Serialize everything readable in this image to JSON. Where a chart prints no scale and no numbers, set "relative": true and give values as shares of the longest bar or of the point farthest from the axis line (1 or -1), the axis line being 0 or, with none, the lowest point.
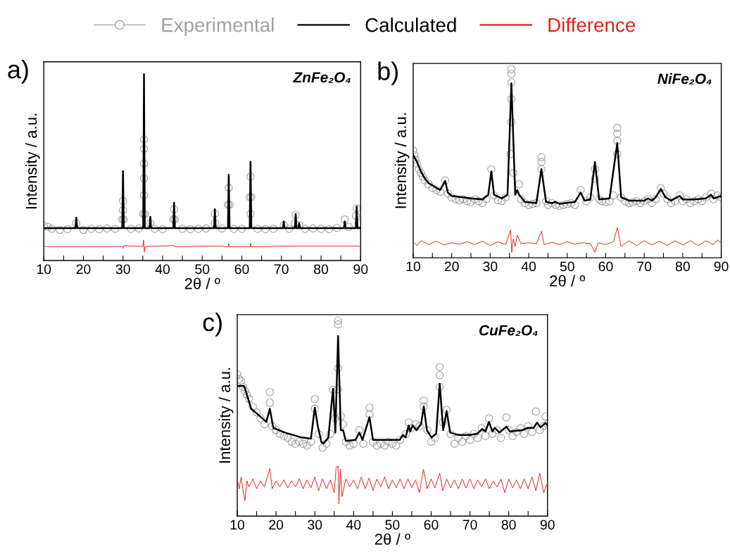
{
  "chart_data": [
    {
      "type": "scatter",
      "title": "a)",
      "xlabel": "2θ / º",
      "ylabel": "Intensity / a.u.",
      "relative": true,
      "legend": "top",
      "tick_labels": "x",
      "annotations": [
        "ZnFe₂O₄"
      ],
      "xlim": [
        10,
        90
      ],
      "xticks": [
        10,
        {
          "value": 15,
          "label": null
        },
        20,
        {
          "value": 25,
          "label": null
        },
        30,
        {
          "value": 35,
          "label": null
        },
        40,
        {
          "value": 45,
          "label": null
        },
        50,
        {
          "value": 55,
          "label": null
        },
        60,
        {
          "value": 65,
          "label": null
        },
        70,
        {
          "value": 75,
          "label": null
        },
        80,
        {
          "value": 85,
          "label": null
        },
        90
      ],
      "series": [
        {
          "name": "Experimental",
          "marker": "circle",
          "color": "#a0a0a0",
          "x": [
            10,
            11,
            12,
            14,
            16,
            18.2,
            20,
            22,
            24,
            26,
            28,
            29.8,
            30.0,
            30.0,
            30.2,
            32,
            34,
            35.1,
            35.3,
            35.3,
            35.3,
            35.3,
            35.3,
            35.5,
            36.9,
            38,
            40,
            42.7,
            42.9,
            43.1,
            45,
            47,
            49,
            51,
            53.2,
            53.2,
            55,
            56.5,
            56.7,
            56.9,
            58,
            60,
            62.0,
            62.2,
            62.4,
            62.2,
            64,
            66,
            68,
            70.6,
            72,
            73.6,
            73.4,
            74.5,
            76,
            78,
            80,
            82,
            84,
            86.0,
            87,
            88.8,
            89.0,
            89.5
          ],
          "values": [
            0.185,
            0.18,
            0.17,
            0.165,
            0.168,
            0.2,
            0.165,
            0.17,
            0.168,
            0.172,
            0.17,
            0.22,
            0.32,
            0.27,
            0.22,
            0.17,
            0.172,
            0.25,
            0.65,
            0.6,
            0.52,
            0.44,
            0.35,
            0.25,
            0.2,
            0.17,
            0.168,
            0.22,
            0.275,
            0.22,
            0.17,
            0.168,
            0.17,
            0.172,
            0.25,
            0.2,
            0.172,
            0.3,
            0.39,
            0.3,
            0.17,
            0.17,
            0.34,
            0.45,
            0.34,
            0.25,
            0.17,
            0.168,
            0.17,
            0.19,
            0.17,
            0.245,
            0.2,
            0.19,
            0.17,
            0.172,
            0.17,
            0.168,
            0.175,
            0.22,
            0.18,
            0.24,
            0.28,
            0.2
          ]
        },
        {
          "name": "Calculated",
          "type": "line",
          "color": "#000000",
          "x": [
            10,
            18.0,
            18.2,
            18.4,
            29.8,
            30.0,
            30.2,
            35.1,
            35.3,
            35.5,
            36.7,
            36.9,
            37.1,
            42.7,
            42.9,
            43.1,
            53.0,
            53.2,
            53.4,
            56.5,
            56.7,
            56.9,
            62.0,
            62.2,
            62.4,
            70.4,
            70.6,
            70.8,
            73.4,
            73.6,
            73.8,
            74.3,
            74.5,
            74.7,
            85.8,
            86.0,
            86.2,
            88.8,
            89.0,
            89.2,
            90
          ],
          "values": [
            0.174,
            0.174,
            0.23,
            0.174,
            0.174,
            0.48,
            0.174,
            0.174,
            1.0,
            0.174,
            0.174,
            0.234,
            0.174,
            0.174,
            0.31,
            0.174,
            0.174,
            0.275,
            0.174,
            0.174,
            0.46,
            0.174,
            0.174,
            0.53,
            0.174,
            0.174,
            0.21,
            0.174,
            0.174,
            0.25,
            0.174,
            0.174,
            0.2,
            0.174,
            0.174,
            0.21,
            0.174,
            0.174,
            0.29,
            0.174,
            0.174
          ]
        },
        {
          "name": "Difference",
          "type": "line",
          "color": "#e0231b",
          "x": [
            10,
            20,
            29.8,
            30.0,
            30.2,
            35.0,
            35.2,
            35.4,
            35.6,
            42.9,
            43.1,
            53.2,
            56.6,
            56.7,
            56.9,
            62.1,
            62.2,
            62.4,
            73.6,
            89,
            90
          ],
          "values": [
            0.075,
            0.075,
            0.075,
            0.065,
            0.08,
            0.075,
            0.11,
            0.045,
            0.075,
            0.08,
            0.075,
            0.078,
            0.075,
            0.09,
            0.075,
            0.075,
            0.092,
            0.075,
            0.078,
            0.078,
            0.075
          ]
        }
      ]
    },
    {
      "type": "scatter",
      "title": "b)",
      "xlabel": "2θ / º",
      "ylabel": "Intensity / a.u.",
      "relative": true,
      "tick_labels": "x",
      "annotations": [
        "NiFe₂O₄"
      ],
      "xlim": [
        10,
        90
      ],
      "xticks": [
        10,
        {
          "value": 15,
          "label": null
        },
        20,
        {
          "value": 25,
          "label": null
        },
        30,
        {
          "value": 35,
          "label": null
        },
        40,
        {
          "value": 45,
          "label": null
        },
        50,
        {
          "value": 55,
          "label": null
        },
        60,
        {
          "value": 65,
          "label": null
        },
        70,
        {
          "value": 75,
          "label": null
        },
        80,
        {
          "value": 85,
          "label": null
        },
        90
      ],
      "series": [
        {
          "marker": "circle",
          "color": "#a0a0a0",
          "x": [
            10,
            10.3,
            10.6,
            11,
            11.5,
            12,
            12.5,
            13,
            14,
            15,
            16,
            17,
            18.3,
            19,
            20,
            21,
            22,
            23,
            24,
            25,
            26,
            27,
            28,
            29,
            30.3,
            31,
            32,
            33,
            34,
            35.5,
            35.5,
            35.5,
            35.5,
            35.5,
            35.3,
            36,
            37.5,
            38,
            39,
            40,
            41,
            42,
            43.3,
            43.3,
            43.3,
            44.5,
            45,
            46,
            47,
            48,
            49,
            50,
            51,
            52,
            53.5,
            55,
            56,
            57.2,
            57.2,
            58.3,
            59,
            60,
            61,
            62,
            63,
            63,
            63,
            63,
            64,
            65,
            66,
            67,
            68,
            69,
            70,
            71,
            72,
            73,
            74.3,
            75,
            76,
            77,
            78,
            79.2,
            80,
            81,
            82,
            83,
            84,
            85,
            86,
            87.4,
            88,
            89,
            90
          ],
          "values": [
            0.57,
            0.545,
            0.52,
            0.5,
            0.47,
            0.45,
            0.43,
            0.41,
            0.39,
            0.37,
            0.36,
            0.35,
            0.41,
            0.34,
            0.32,
            0.31,
            0.305,
            0.31,
            0.3,
            0.295,
            0.31,
            0.3,
            0.29,
            0.31,
            0.47,
            0.33,
            0.305,
            0.3,
            0.32,
            1.0,
            0.975,
            0.93,
            0.84,
            0.72,
            0.55,
            0.45,
            0.39,
            0.31,
            0.29,
            0.28,
            0.285,
            0.29,
            0.533,
            0.508,
            0.47,
            0.3,
            0.28,
            0.29,
            0.28,
            0.275,
            0.28,
            0.285,
            0.29,
            0.28,
            0.36,
            0.3,
            0.32,
            0.47,
            0.42,
            0.31,
            0.3,
            0.295,
            0.3,
            0.33,
            0.689,
            0.658,
            0.62,
            0.55,
            0.32,
            0.3,
            0.29,
            0.295,
            0.3,
            0.29,
            0.3,
            0.31,
            0.29,
            0.31,
            0.37,
            0.34,
            0.31,
            0.29,
            0.3,
            0.33,
            0.3,
            0.31,
            0.29,
            0.3,
            0.31,
            0.3,
            0.32,
            0.34,
            0.31,
            0.33,
            0.32
          ]
        },
        {
          "type": "line",
          "color": "#000000",
          "x": [
            10,
            11,
            12,
            13,
            14,
            16,
            17,
            18.3,
            19,
            20,
            25,
            28,
            29.5,
            30.3,
            31,
            33,
            34.5,
            35.5,
            36.5,
            37,
            37.5,
            39,
            42,
            43.3,
            44.5,
            46,
            47,
            48,
            52,
            53.5,
            54.5,
            56,
            57.2,
            58.3,
            61,
            63,
            64,
            66,
            70,
            71,
            72,
            73,
            74.3,
            75.5,
            77,
            79.2,
            80,
            83,
            86,
            87.4,
            88,
            90
          ],
          "values": [
            0.545,
            0.508,
            0.458,
            0.421,
            0.396,
            0.371,
            0.359,
            0.408,
            0.346,
            0.328,
            0.315,
            0.309,
            0.334,
            0.458,
            0.334,
            0.315,
            0.334,
            0.925,
            0.334,
            0.359,
            0.334,
            0.296,
            0.29,
            0.471,
            0.296,
            0.29,
            0.296,
            0.286,
            0.296,
            0.346,
            0.303,
            0.309,
            0.508,
            0.309,
            0.315,
            0.608,
            0.321,
            0.303,
            0.303,
            0.315,
            0.303,
            0.321,
            0.365,
            0.321,
            0.303,
            0.328,
            0.309,
            0.309,
            0.315,
            0.334,
            0.315,
            0.328
          ]
        },
        {
          "type": "line",
          "color": "#e0231b",
          "x": [
            10,
            11,
            12,
            14,
            16,
            18,
            20,
            22,
            24,
            26,
            28,
            30,
            32,
            34,
            35.3,
            35.6,
            36,
            36.5,
            37,
            38,
            40,
            42,
            43.3,
            44,
            46,
            48,
            50,
            52,
            54,
            56,
            57.2,
            58,
            60,
            62,
            63,
            64,
            66,
            68,
            70,
            72,
            74,
            76,
            78,
            80,
            82,
            84,
            86,
            88,
            89,
            90
          ],
          "values": [
            0.085,
            0.065,
            0.09,
            0.07,
            0.088,
            0.068,
            0.08,
            0.072,
            0.085,
            0.07,
            0.088,
            0.065,
            0.085,
            0.07,
            0.147,
            0.029,
            0.1,
            0.06,
            0.12,
            0.075,
            0.08,
            0.074,
            0.141,
            0.07,
            0.082,
            0.07,
            0.085,
            0.072,
            0.08,
            0.075,
            0.029,
            0.08,
            0.07,
            0.085,
            0.159,
            0.06,
            0.09,
            0.065,
            0.09,
            0.068,
            0.088,
            0.066,
            0.09,
            0.068,
            0.09,
            0.065,
            0.09,
            0.07,
            0.095,
            0.08
          ]
        }
      ]
    },
    {
      "type": "scatter",
      "title": "c)",
      "xlabel": "2θ / º",
      "ylabel": "Intensity / a.u.",
      "relative": true,
      "tick_labels": "x",
      "annotations": [
        "CuFe₂O₄"
      ],
      "xlim": [
        10,
        90
      ],
      "xticks": [
        10,
        {
          "value": 15,
          "label": null
        },
        20,
        {
          "value": 25,
          "label": null
        },
        30,
        {
          "value": 35,
          "label": null
        },
        40,
        {
          "value": 45,
          "label": null
        },
        50,
        {
          "value": 55,
          "label": null
        },
        60,
        {
          "value": 65,
          "label": null
        },
        70,
        {
          "value": 75,
          "label": null
        },
        80,
        {
          "value": 85,
          "label": null
        },
        90
      ],
      "series": [
        {
          "marker": "circle",
          "color": "#a0a0a0",
          "x": [
            10,
            10.5,
            11,
            11.5,
            12,
            12.5,
            13,
            14,
            15,
            16,
            17,
            18.4,
            18.4,
            19,
            20,
            21,
            22,
            23,
            24,
            25,
            26,
            27,
            28,
            29,
            30,
            30,
            31,
            32,
            33,
            34,
            34.7,
            35.3,
            36.0,
            36.0,
            36.0,
            36.0,
            36.7,
            37.3,
            38,
            39,
            40,
            41.5,
            42.5,
            44.1,
            44.1,
            45,
            46,
            47,
            48,
            49,
            50,
            51,
            52,
            53.5,
            54.2,
            55,
            56,
            57,
            58.1,
            58.1,
            59,
            60,
            61,
            62.2,
            62.2,
            62.2,
            63,
            64,
            65,
            66,
            67,
            68,
            69,
            70,
            71,
            72,
            73,
            74,
            74.9,
            75.8,
            77,
            78,
            79.4,
            80,
            81,
            82,
            83,
            84,
            85,
            86,
            87,
            88,
            89,
            89.5,
            90
          ],
          "values": [
            0.726,
            0.7,
            0.69,
            0.66,
            0.64,
            0.62,
            0.6,
            0.56,
            0.53,
            0.5,
            0.47,
            0.634,
            0.58,
            0.46,
            0.44,
            0.42,
            0.41,
            0.4,
            0.38,
            0.37,
            0.38,
            0.37,
            0.36,
            0.38,
            0.598,
            0.55,
            0.42,
            0.35,
            0.37,
            0.42,
            0.646,
            0.5,
            1.0,
            0.98,
            0.756,
            0.65,
            0.51,
            0.47,
            0.38,
            0.36,
            0.37,
            0.44,
            0.37,
            0.555,
            0.52,
            0.38,
            0.36,
            0.37,
            0.36,
            0.38,
            0.37,
            0.36,
            0.39,
            0.42,
            0.48,
            0.45,
            0.47,
            0.46,
            0.591,
            0.56,
            0.44,
            0.38,
            0.4,
            0.762,
            0.72,
            0.66,
            0.48,
            0.543,
            0.42,
            0.37,
            0.4,
            0.38,
            0.41,
            0.39,
            0.42,
            0.4,
            0.45,
            0.41,
            0.5,
            0.42,
            0.44,
            0.4,
            0.505,
            0.44,
            0.41,
            0.43,
            0.45,
            0.42,
            0.46,
            0.43,
            0.535,
            0.44,
            0.46,
            0.51,
            0.47
          ]
        },
        {
          "type": "line",
          "color": "#000000",
          "x": [
            10,
            11.8,
            13.6,
            17.5,
            18.4,
            19.3,
            22.3,
            26.6,
            29,
            30,
            30.8,
            31.7,
            32.3,
            33.5,
            34.7,
            35.3,
            36.0,
            36.7,
            37.3,
            38,
            40.5,
            41.5,
            42.3,
            44.1,
            45,
            51.9,
            52.7,
            53.4,
            54.2,
            54.6,
            55.2,
            56.2,
            57.4,
            58.1,
            58.9,
            60.1,
            61.3,
            62.2,
            63.1,
            64,
            64.9,
            67,
            70,
            71.9,
            73.1,
            74,
            74.9,
            75.8,
            76.4,
            77.6,
            79.4,
            80.3,
            83.4,
            84.9,
            86.4,
            87.3,
            88.2,
            89.5,
            90
          ],
          "values": [
            0.665,
            0.665,
            0.549,
            0.482,
            0.549,
            0.451,
            0.427,
            0.402,
            0.396,
            0.555,
            0.457,
            0.378,
            0.372,
            0.402,
            0.652,
            0.427,
            0.921,
            0.439,
            0.439,
            0.384,
            0.39,
            0.427,
            0.39,
            0.506,
            0.39,
            0.39,
            0.415,
            0.402,
            0.463,
            0.433,
            0.463,
            0.439,
            0.47,
            0.561,
            0.439,
            0.402,
            0.421,
            0.677,
            0.439,
            0.537,
            0.427,
            0.415,
            0.415,
            0.421,
            0.445,
            0.433,
            0.482,
            0.433,
            0.451,
            0.427,
            0.457,
            0.433,
            0.439,
            0.451,
            0.451,
            0.478,
            0.454,
            0.476,
            0.463
          ]
        },
        {
          "type": "line",
          "color": "#e0231b",
          "x": [
            10,
            10.5,
            11,
            11.5,
            12,
            12.5,
            13,
            14,
            15,
            16,
            17,
            18.4,
            19,
            20,
            21,
            22,
            23,
            24,
            25,
            26,
            27,
            28,
            29,
            30,
            31,
            32,
            33,
            34,
            35,
            35.5,
            36,
            36.2,
            36.6,
            37,
            38,
            39,
            40,
            41,
            42,
            43,
            44,
            45,
            46,
            47,
            48,
            49,
            50,
            51,
            52,
            53,
            54,
            55,
            56,
            57,
            58,
            59,
            60,
            61,
            62.2,
            63,
            64,
            65,
            66,
            67,
            68,
            69,
            70,
            71,
            72,
            73,
            74,
            75,
            76,
            77,
            78,
            79,
            80,
            81,
            82,
            83,
            84,
            85,
            86,
            87,
            88,
            89,
            90
          ],
          "values": [
            0.19,
            0.14,
            0.2,
            0.13,
            0.079,
            0.18,
            0.15,
            0.19,
            0.14,
            0.18,
            0.15,
            0.244,
            0.14,
            0.18,
            0.15,
            0.185,
            0.145,
            0.18,
            0.15,
            0.19,
            0.14,
            0.185,
            0.145,
            0.2,
            0.13,
            0.19,
            0.14,
            0.185,
            0.12,
            0.25,
            0.256,
            0.061,
            0.24,
            0.1,
            0.19,
            0.15,
            0.185,
            0.14,
            0.2,
            0.14,
            0.195,
            0.13,
            0.19,
            0.15,
            0.2,
            0.14,
            0.185,
            0.145,
            0.19,
            0.14,
            0.19,
            0.145,
            0.185,
            0.12,
            0.24,
            0.14,
            0.19,
            0.145,
            0.22,
            0.13,
            0.19,
            0.145,
            0.185,
            0.14,
            0.19,
            0.145,
            0.19,
            0.14,
            0.185,
            0.15,
            0.19,
            0.14,
            0.18,
            0.15,
            0.19,
            0.12,
            0.19,
            0.145,
            0.185,
            0.14,
            0.19,
            0.14,
            0.2,
            0.13,
            0.22,
            0.12,
            0.17
          ]
        }
      ]
    }
  ]
}
